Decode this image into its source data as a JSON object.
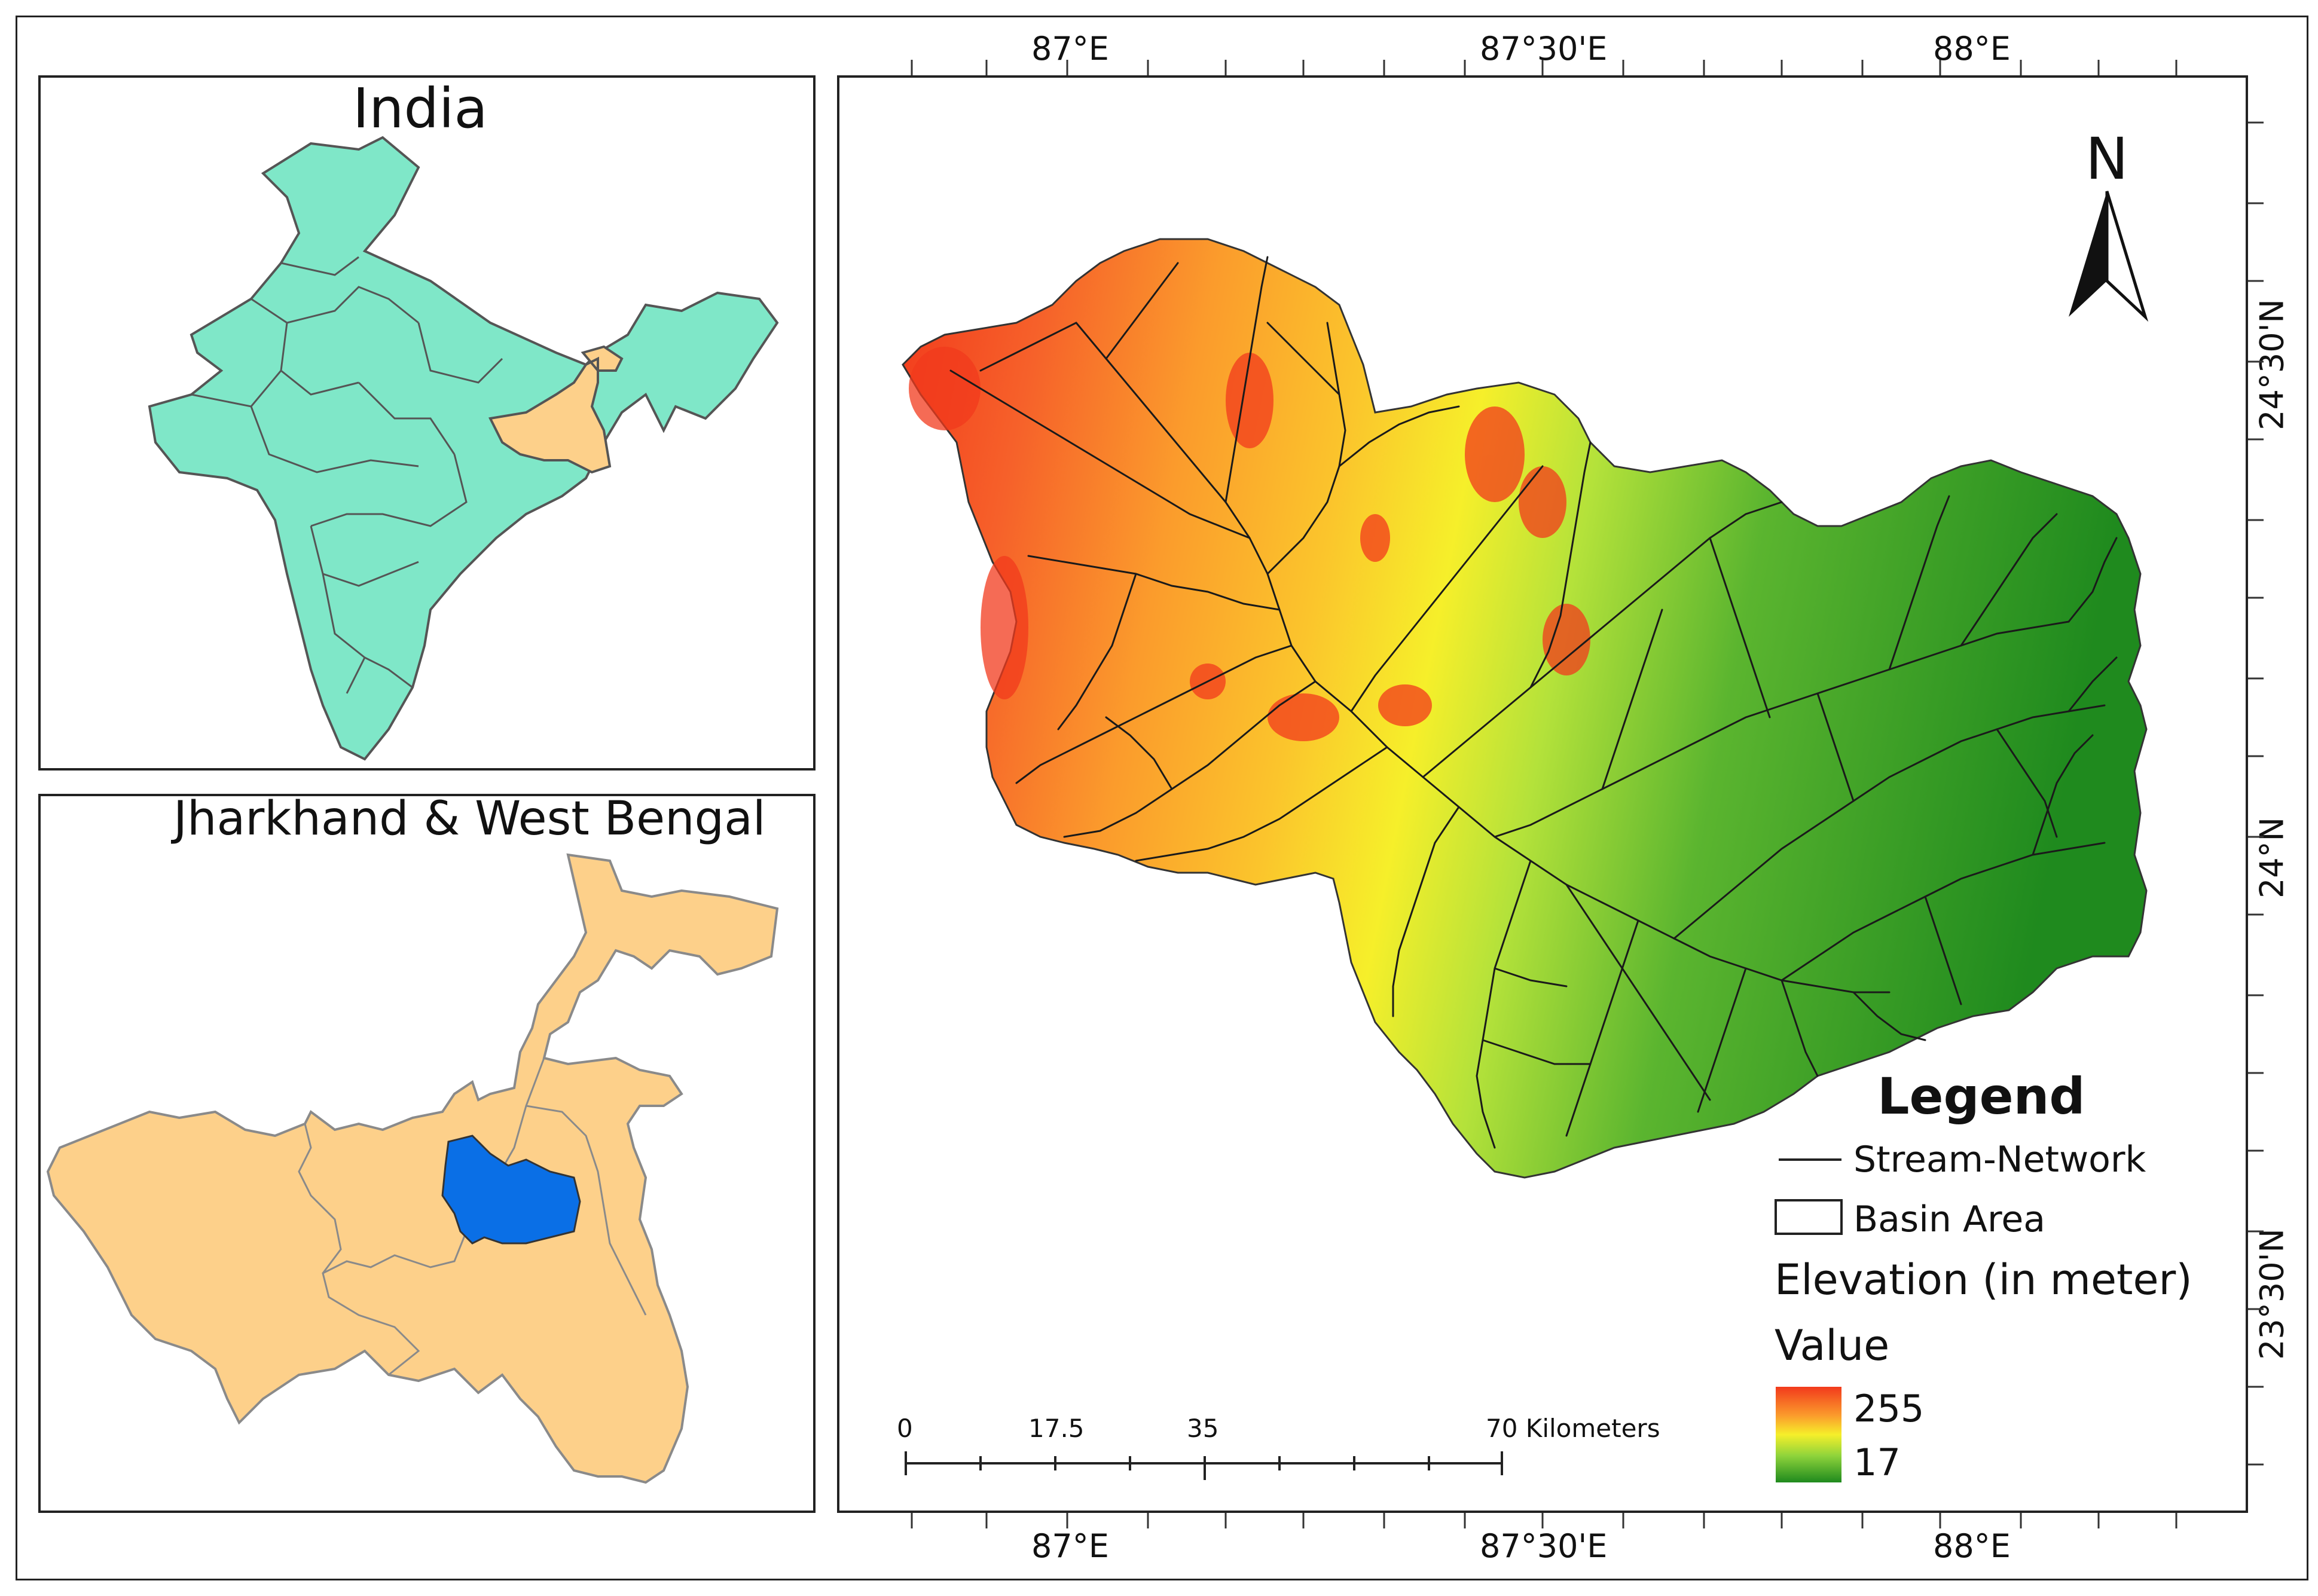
{
  "inset_india": {
    "title": "India",
    "colors": {
      "states": "#7fe7c8",
      "highlight": "#fdd08a",
      "border": "#555555"
    }
  },
  "inset_states": {
    "title": "Jharkhand & West Bengal",
    "colors": {
      "states": "#fdd08a",
      "basin": "#0a6fe6",
      "border": "#8a8a8a"
    }
  },
  "main_map": {
    "lon_labels": [
      "87°E",
      "87°30'E",
      "88°E"
    ],
    "lat_labels": [
      "24°30'N",
      "24°N",
      "23°30'N"
    ],
    "north_arrow": {
      "label": "N",
      "icon": "north-arrow-icon"
    },
    "scale_bar": {
      "labels": [
        "0",
        "17.5",
        "35",
        "70 Kilometers"
      ]
    },
    "elevation_colors": {
      "high": "#f23a1c",
      "mid_high": "#fb9b2c",
      "mid": "#f6ef2a",
      "mid_low": "#8fd43b",
      "low": "#1f8a1e"
    }
  },
  "legend": {
    "title": "Legend",
    "stream_label": "Stream-Network",
    "basin_label": "Basin Area",
    "elevation_title": "Elevation (in meter)",
    "value_title": "Value",
    "max": "255",
    "min": "17"
  }
}
